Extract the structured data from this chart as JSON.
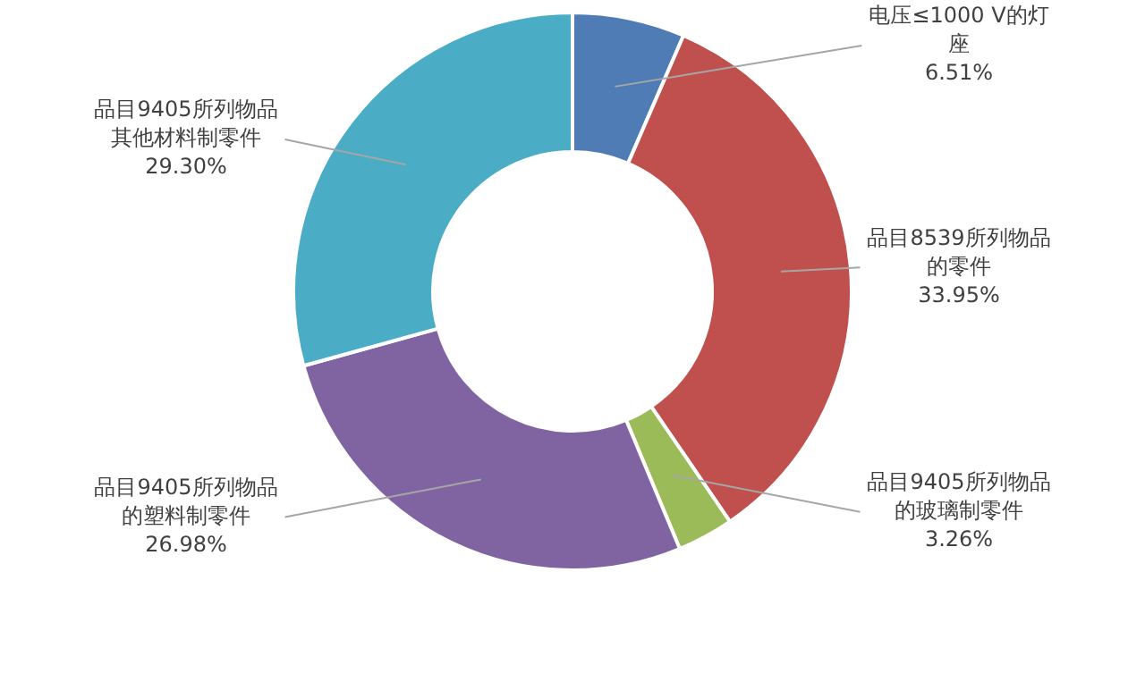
{
  "chart_data": {
    "type": "donut",
    "categories": [
      "电压≤1000 V的灯座",
      "品目8539所列物品的零件",
      "品目9405所列物品的玻璃制零件",
      "品目9405所列物品的塑料制零件",
      "品目9405所列物品其他材料制零件"
    ],
    "values": [
      6.51,
      33.95,
      3.26,
      26.98,
      29.3
    ],
    "colors": [
      "#4f7cb5",
      "#c0504d",
      "#9bbb59",
      "#8064a2",
      "#4bacc6"
    ],
    "value_labels": [
      "6.51%",
      "33.95%",
      "3.26%",
      "26.98%",
      "29.30%"
    ],
    "legend": false
  }
}
